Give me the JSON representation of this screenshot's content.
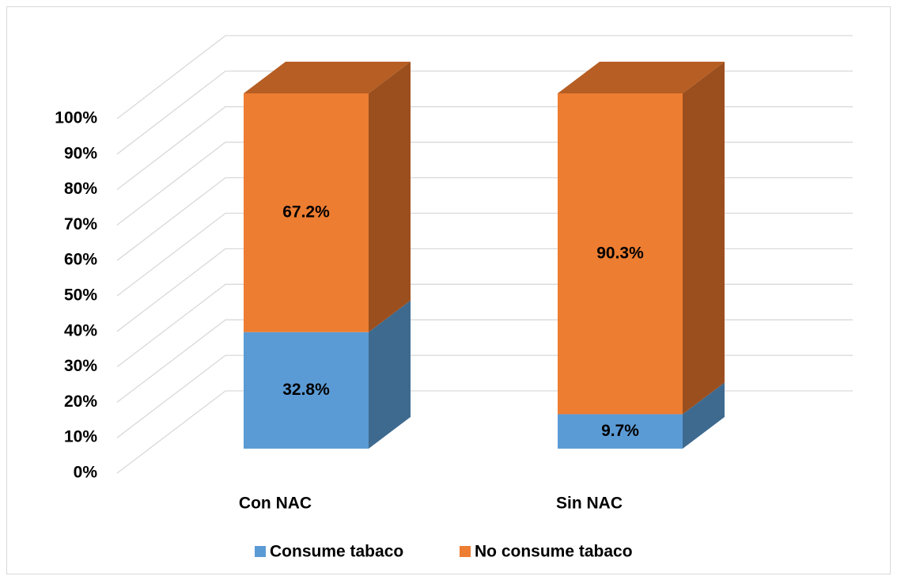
{
  "chart_data": {
    "type": "bar",
    "stacked": true,
    "three_d": true,
    "categories": [
      "Con NAC",
      "Sin NAC"
    ],
    "series": [
      {
        "name": "Consume tabaco",
        "color": "#5b9bd5",
        "side_color": "#3e6a8f",
        "top_color": "#4f86b8",
        "values": [
          32.8,
          9.7
        ],
        "value_labels": [
          "32.8%",
          "9.7%"
        ]
      },
      {
        "name": "No consume tabaco",
        "color": "#ed7d31",
        "side_color": "#9c4f1e",
        "top_color": "#b65e23",
        "values": [
          67.2,
          90.3
        ],
        "value_labels": [
          "67.2%",
          "90.3%"
        ]
      }
    ],
    "ylim": [
      0,
      100
    ],
    "yticks": [
      {
        "value": 0,
        "label": "0%"
      },
      {
        "value": 10,
        "label": "10%"
      },
      {
        "value": 20,
        "label": "20%"
      },
      {
        "value": 30,
        "label": "30%"
      },
      {
        "value": 40,
        "label": "40%"
      },
      {
        "value": 50,
        "label": "50%"
      },
      {
        "value": 60,
        "label": "60%"
      },
      {
        "value": 70,
        "label": "70%"
      },
      {
        "value": 80,
        "label": "80%"
      },
      {
        "value": 90,
        "label": "90%"
      },
      {
        "value": 100,
        "label": "100%"
      }
    ],
    "grid": true,
    "legend": "bottom"
  }
}
